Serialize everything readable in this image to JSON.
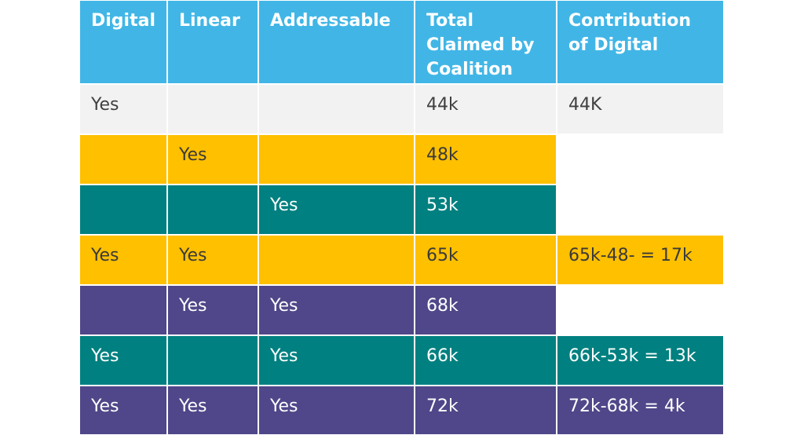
{
  "table": {
    "header": [
      "Digital",
      "Linear",
      "Addressable",
      "Total Claimed by Coalition",
      "Contribution of Digital"
    ],
    "rows": [
      [
        "Yes",
        null,
        null,
        "44k",
        "44K"
      ],
      [
        null,
        "Yes",
        null,
        "48k",
        null
      ],
      [
        null,
        null,
        "Yes",
        "53k",
        null
      ],
      [
        "Yes",
        "Yes",
        null,
        "65k",
        "65k-48- = 17k"
      ],
      [
        null,
        "Yes",
        "Yes",
        "68k",
        null
      ],
      [
        "Yes",
        null,
        "Yes",
        "66k",
        "66k-53k = 13k"
      ],
      [
        "Yes",
        "Yes",
        "Yes",
        "72k",
        "72k-68k = 4k"
      ]
    ]
  }
}
